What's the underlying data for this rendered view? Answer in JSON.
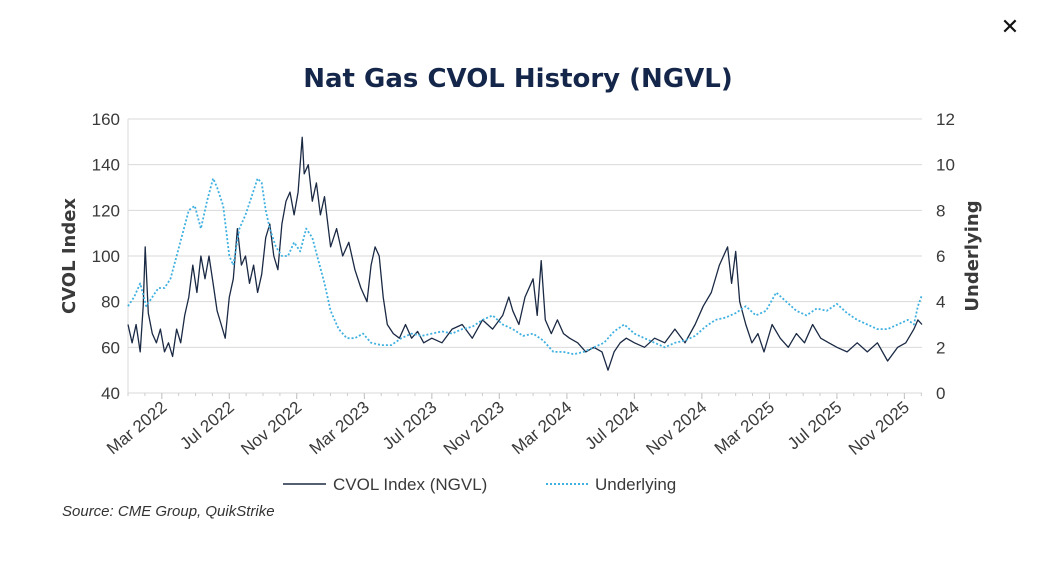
{
  "dialog": {
    "close_icon": "close-icon",
    "close_glyph": "✕"
  },
  "chart_data": {
    "type": "line",
    "title": "Nat Gas CVOL History (NGVL)",
    "ylabel": "CVOL Index",
    "y2label": "Underlying",
    "ylim": [
      40,
      160
    ],
    "y2lim": [
      0,
      12
    ],
    "yticks": [
      "40",
      "60",
      "80",
      "100",
      "120",
      "140",
      "160"
    ],
    "y2ticks": [
      "0",
      "2",
      "4",
      "6",
      "8",
      "10",
      "12"
    ],
    "xlim": [
      2022.0,
      2025.92
    ],
    "xticks": [
      {
        "label": "Mar 2022",
        "x": 2022.167
      },
      {
        "label": "Jul 2022",
        "x": 2022.5
      },
      {
        "label": "Nov 2022",
        "x": 2022.833
      },
      {
        "label": "Mar 2023",
        "x": 2023.167
      },
      {
        "label": "Jul 2023",
        "x": 2023.5
      },
      {
        "label": "Nov 2023",
        "x": 2023.833
      },
      {
        "label": "Mar 2024",
        "x": 2024.167
      },
      {
        "label": "Jul 2024",
        "x": 2024.5
      },
      {
        "label": "Nov 2024",
        "x": 2024.833
      },
      {
        "label": "Mar 2025",
        "x": 2025.167
      },
      {
        "label": "Jul 2025",
        "x": 2025.5
      },
      {
        "label": "Nov 2025",
        "x": 2025.833
      }
    ],
    "grid": true,
    "legend_position": "bottom-center",
    "colors": {
      "cvol": "#1b2a44",
      "underlying": "#3fb0e0",
      "grid": "#d9d9d9",
      "title": "#14264a"
    },
    "series": [
      {
        "name": "CVOL Index (NGVL)",
        "axis": "left",
        "style": "solid",
        "points": [
          [
            2022.0,
            70
          ],
          [
            2022.02,
            62
          ],
          [
            2022.04,
            70
          ],
          [
            2022.06,
            58
          ],
          [
            2022.075,
            78
          ],
          [
            2022.085,
            104
          ],
          [
            2022.1,
            75
          ],
          [
            2022.12,
            66
          ],
          [
            2022.14,
            62
          ],
          [
            2022.16,
            68
          ],
          [
            2022.18,
            58
          ],
          [
            2022.2,
            62
          ],
          [
            2022.22,
            56
          ],
          [
            2022.24,
            68
          ],
          [
            2022.26,
            62
          ],
          [
            2022.28,
            74
          ],
          [
            2022.3,
            82
          ],
          [
            2022.32,
            96
          ],
          [
            2022.34,
            84
          ],
          [
            2022.36,
            100
          ],
          [
            2022.38,
            90
          ],
          [
            2022.4,
            100
          ],
          [
            2022.42,
            88
          ],
          [
            2022.44,
            76
          ],
          [
            2022.46,
            70
          ],
          [
            2022.48,
            64
          ],
          [
            2022.5,
            82
          ],
          [
            2022.52,
            90
          ],
          [
            2022.54,
            112
          ],
          [
            2022.56,
            96
          ],
          [
            2022.58,
            100
          ],
          [
            2022.6,
            88
          ],
          [
            2022.62,
            96
          ],
          [
            2022.64,
            84
          ],
          [
            2022.66,
            92
          ],
          [
            2022.68,
            108
          ],
          [
            2022.7,
            114
          ],
          [
            2022.72,
            100
          ],
          [
            2022.74,
            94
          ],
          [
            2022.76,
            114
          ],
          [
            2022.78,
            124
          ],
          [
            2022.8,
            128
          ],
          [
            2022.82,
            118
          ],
          [
            2022.84,
            128
          ],
          [
            2022.86,
            152
          ],
          [
            2022.87,
            136
          ],
          [
            2022.89,
            140
          ],
          [
            2022.91,
            124
          ],
          [
            2022.93,
            132
          ],
          [
            2022.95,
            118
          ],
          [
            2022.97,
            126
          ],
          [
            2023.0,
            104
          ],
          [
            2023.03,
            112
          ],
          [
            2023.06,
            100
          ],
          [
            2023.09,
            106
          ],
          [
            2023.12,
            94
          ],
          [
            2023.15,
            86
          ],
          [
            2023.18,
            80
          ],
          [
            2023.2,
            96
          ],
          [
            2023.22,
            104
          ],
          [
            2023.24,
            100
          ],
          [
            2023.26,
            82
          ],
          [
            2023.28,
            70
          ],
          [
            2023.31,
            66
          ],
          [
            2023.34,
            64
          ],
          [
            2023.37,
            70
          ],
          [
            2023.4,
            64
          ],
          [
            2023.43,
            67
          ],
          [
            2023.46,
            62
          ],
          [
            2023.5,
            64
          ],
          [
            2023.55,
            62
          ],
          [
            2023.6,
            68
          ],
          [
            2023.65,
            70
          ],
          [
            2023.7,
            64
          ],
          [
            2023.75,
            72
          ],
          [
            2023.8,
            68
          ],
          [
            2023.85,
            74
          ],
          [
            2023.88,
            82
          ],
          [
            2023.9,
            76
          ],
          [
            2023.93,
            70
          ],
          [
            2023.96,
            82
          ],
          [
            2024.0,
            90
          ],
          [
            2024.02,
            74
          ],
          [
            2024.04,
            98
          ],
          [
            2024.06,
            72
          ],
          [
            2024.09,
            66
          ],
          [
            2024.12,
            72
          ],
          [
            2024.15,
            66
          ],
          [
            2024.18,
            64
          ],
          [
            2024.22,
            62
          ],
          [
            2024.26,
            58
          ],
          [
            2024.3,
            60
          ],
          [
            2024.34,
            58
          ],
          [
            2024.37,
            50
          ],
          [
            2024.4,
            58
          ],
          [
            2024.43,
            62
          ],
          [
            2024.46,
            64
          ],
          [
            2024.5,
            62
          ],
          [
            2024.55,
            60
          ],
          [
            2024.6,
            64
          ],
          [
            2024.65,
            62
          ],
          [
            2024.7,
            68
          ],
          [
            2024.75,
            62
          ],
          [
            2024.8,
            70
          ],
          [
            2024.84,
            78
          ],
          [
            2024.88,
            84
          ],
          [
            2024.92,
            96
          ],
          [
            2024.96,
            104
          ],
          [
            2024.98,
            88
          ],
          [
            2025.0,
            102
          ],
          [
            2025.02,
            80
          ],
          [
            2025.05,
            70
          ],
          [
            2025.08,
            62
          ],
          [
            2025.11,
            66
          ],
          [
            2025.14,
            58
          ],
          [
            2025.18,
            70
          ],
          [
            2025.22,
            64
          ],
          [
            2025.26,
            60
          ],
          [
            2025.3,
            66
          ],
          [
            2025.34,
            62
          ],
          [
            2025.38,
            70
          ],
          [
            2025.42,
            64
          ],
          [
            2025.46,
            62
          ],
          [
            2025.5,
            60
          ],
          [
            2025.55,
            58
          ],
          [
            2025.6,
            62
          ],
          [
            2025.65,
            58
          ],
          [
            2025.7,
            62
          ],
          [
            2025.75,
            54
          ],
          [
            2025.8,
            60
          ],
          [
            2025.84,
            62
          ],
          [
            2025.88,
            68
          ],
          [
            2025.9,
            72
          ],
          [
            2025.92,
            70
          ]
        ]
      },
      {
        "name": "Underlying",
        "axis": "right",
        "style": "dotted",
        "points": [
          [
            2022.0,
            3.8
          ],
          [
            2022.03,
            4.2
          ],
          [
            2022.06,
            4.8
          ],
          [
            2022.09,
            3.8
          ],
          [
            2022.12,
            4.2
          ],
          [
            2022.15,
            4.6
          ],
          [
            2022.18,
            4.6
          ],
          [
            2022.21,
            5.0
          ],
          [
            2022.24,
            6.0
          ],
          [
            2022.27,
            7.0
          ],
          [
            2022.3,
            8.0
          ],
          [
            2022.33,
            8.2
          ],
          [
            2022.36,
            7.2
          ],
          [
            2022.39,
            8.4
          ],
          [
            2022.42,
            9.4
          ],
          [
            2022.44,
            9.0
          ],
          [
            2022.47,
            8.2
          ],
          [
            2022.5,
            6.0
          ],
          [
            2022.52,
            5.6
          ],
          [
            2022.55,
            7.2
          ],
          [
            2022.58,
            7.8
          ],
          [
            2022.61,
            8.6
          ],
          [
            2022.64,
            9.4
          ],
          [
            2022.66,
            9.2
          ],
          [
            2022.68,
            8.0
          ],
          [
            2022.7,
            7.2
          ],
          [
            2022.73,
            6.4
          ],
          [
            2022.76,
            6.0
          ],
          [
            2022.79,
            6.0
          ],
          [
            2022.82,
            6.6
          ],
          [
            2022.85,
            6.2
          ],
          [
            2022.88,
            7.2
          ],
          [
            2022.91,
            6.8
          ],
          [
            2022.94,
            5.8
          ],
          [
            2022.97,
            4.8
          ],
          [
            2023.0,
            3.6
          ],
          [
            2023.04,
            2.8
          ],
          [
            2023.08,
            2.4
          ],
          [
            2023.12,
            2.4
          ],
          [
            2023.16,
            2.6
          ],
          [
            2023.2,
            2.2
          ],
          [
            2023.25,
            2.1
          ],
          [
            2023.3,
            2.1
          ],
          [
            2023.35,
            2.4
          ],
          [
            2023.4,
            2.6
          ],
          [
            2023.45,
            2.5
          ],
          [
            2023.5,
            2.6
          ],
          [
            2023.55,
            2.7
          ],
          [
            2023.6,
            2.6
          ],
          [
            2023.65,
            2.8
          ],
          [
            2023.7,
            2.9
          ],
          [
            2023.75,
            3.2
          ],
          [
            2023.8,
            3.4
          ],
          [
            2023.85,
            3.0
          ],
          [
            2023.9,
            2.8
          ],
          [
            2023.95,
            2.5
          ],
          [
            2024.0,
            2.6
          ],
          [
            2024.05,
            2.3
          ],
          [
            2024.1,
            1.8
          ],
          [
            2024.15,
            1.8
          ],
          [
            2024.2,
            1.7
          ],
          [
            2024.25,
            1.8
          ],
          [
            2024.3,
            2.0
          ],
          [
            2024.35,
            2.2
          ],
          [
            2024.4,
            2.7
          ],
          [
            2024.45,
            3.0
          ],
          [
            2024.5,
            2.6
          ],
          [
            2024.55,
            2.4
          ],
          [
            2024.6,
            2.2
          ],
          [
            2024.65,
            2.0
          ],
          [
            2024.7,
            2.2
          ],
          [
            2024.75,
            2.3
          ],
          [
            2024.8,
            2.5
          ],
          [
            2024.85,
            2.9
          ],
          [
            2024.9,
            3.2
          ],
          [
            2024.95,
            3.3
          ],
          [
            2025.0,
            3.5
          ],
          [
            2025.05,
            3.8
          ],
          [
            2025.1,
            3.4
          ],
          [
            2025.15,
            3.6
          ],
          [
            2025.2,
            4.4
          ],
          [
            2025.25,
            4.0
          ],
          [
            2025.3,
            3.6
          ],
          [
            2025.35,
            3.4
          ],
          [
            2025.4,
            3.7
          ],
          [
            2025.45,
            3.6
          ],
          [
            2025.5,
            3.9
          ],
          [
            2025.55,
            3.5
          ],
          [
            2025.6,
            3.2
          ],
          [
            2025.65,
            3.0
          ],
          [
            2025.7,
            2.8
          ],
          [
            2025.75,
            2.8
          ],
          [
            2025.8,
            3.0
          ],
          [
            2025.85,
            3.2
          ],
          [
            2025.88,
            3.0
          ],
          [
            2025.9,
            3.8
          ],
          [
            2025.92,
            4.3
          ]
        ]
      }
    ],
    "source": "Source: CME Group, QuikStrike"
  }
}
